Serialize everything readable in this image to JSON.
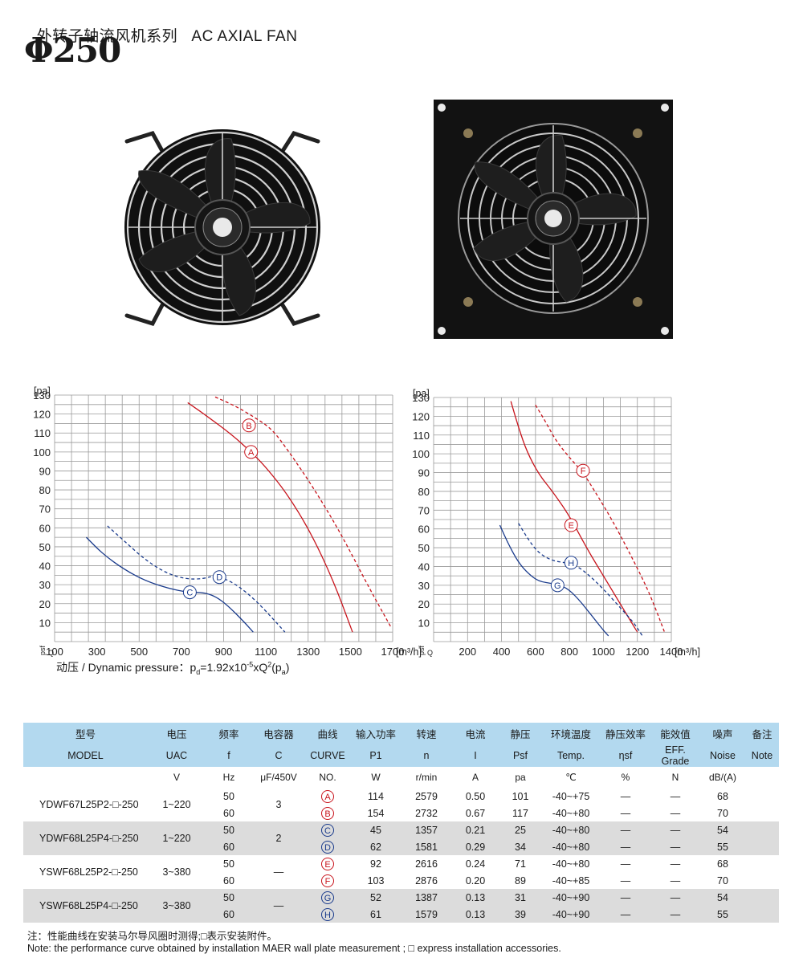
{
  "header": {
    "title_cn": "外转子轴流风机系列",
    "title_en": "AC AXIAL FAN",
    "size": "Φ250"
  },
  "chart_data": [
    {
      "type": "line",
      "xlabel": "[m³/h]",
      "ylabel": "[pa]",
      "y_axis_label": "psf",
      "x_axis_label": "Q",
      "xlim": [
        100,
        1700
      ],
      "ylim": [
        0,
        130
      ],
      "x_ticks": [
        "100",
        "300",
        "500",
        "700",
        "900",
        "1100",
        "1300",
        "1500",
        "1700"
      ],
      "y_ticks": [
        "10",
        "20",
        "30",
        "40",
        "50",
        "60",
        "70",
        "80",
        "90",
        "100",
        "110",
        "120",
        "130"
      ],
      "series": [
        {
          "name": "A",
          "color": "#c8141c",
          "style": "solid",
          "x": [
            730,
            820,
            940,
            1030,
            1100,
            1200,
            1310,
            1420,
            1510
          ],
          "y": [
            126,
            119,
            109,
            100,
            92,
            78,
            58,
            32,
            5
          ]
        },
        {
          "name": "B",
          "color": "#c8141c",
          "style": "dashed",
          "x": [
            860,
            960,
            1050,
            1130,
            1210,
            1320,
            1450,
            1590,
            1690
          ],
          "y": [
            129,
            124,
            118,
            112,
            100,
            82,
            58,
            28,
            8
          ]
        },
        {
          "name": "C",
          "color": "#1a3b8c",
          "style": "solid",
          "x": [
            250,
            330,
            430,
            530,
            640,
            730,
            800,
            860,
            920,
            1000,
            1040
          ],
          "y": [
            55,
            46,
            38,
            32,
            28,
            26,
            26,
            24,
            19,
            10,
            5
          ]
        },
        {
          "name": "D",
          "color": "#1a3b8c",
          "style": "dashed",
          "x": [
            350,
            430,
            530,
            630,
            720,
            800,
            860,
            950,
            1050,
            1150,
            1190
          ],
          "y": [
            61,
            53,
            43,
            36,
            33,
            33,
            35,
            31,
            22,
            10,
            5
          ]
        }
      ],
      "labels": [
        {
          "text": "A",
          "x": 1030,
          "y": 100
        },
        {
          "text": "B",
          "x": 1020,
          "y": 114
        },
        {
          "text": "C",
          "x": 740,
          "y": 26
        },
        {
          "text": "D",
          "x": 880,
          "y": 34
        }
      ]
    },
    {
      "type": "line",
      "xlabel": "[m³/h]",
      "ylabel": "[pa]",
      "y_axis_label": "psf",
      "x_axis_label": "Q",
      "xlim": [
        0,
        1400
      ],
      "ylim": [
        0,
        130
      ],
      "x_ticks": [
        "200",
        "400",
        "600",
        "800",
        "1000",
        "1200",
        "1400"
      ],
      "y_ticks": [
        "10",
        "20",
        "30",
        "40",
        "50",
        "60",
        "70",
        "80",
        "90",
        "100",
        "110",
        "120",
        "130"
      ],
      "series": [
        {
          "name": "E",
          "color": "#c8141c",
          "style": "solid",
          "x": [
            455,
            500,
            550,
            620,
            700,
            800,
            900,
            1000,
            1100,
            1200
          ],
          "y": [
            128,
            114,
            101,
            89,
            80,
            67,
            50,
            35,
            20,
            5
          ]
        },
        {
          "name": "F",
          "color": "#c8141c",
          "style": "dashed",
          "x": [
            600,
            660,
            720,
            800,
            880,
            950,
            1050,
            1150,
            1250,
            1310,
            1360
          ],
          "y": [
            126,
            117,
            107,
            98,
            90,
            80,
            65,
            48,
            30,
            17,
            5
          ]
        },
        {
          "name": "G",
          "color": "#1a3b8c",
          "style": "solid",
          "x": [
            390,
            440,
            500,
            560,
            620,
            700,
            780,
            850,
            930,
            1000,
            1030
          ],
          "y": [
            62,
            52,
            42,
            36,
            32,
            31,
            29,
            23,
            14,
            6,
            3
          ]
        },
        {
          "name": "H",
          "color": "#1a3b8c",
          "style": "dashed",
          "x": [
            500,
            560,
            620,
            700,
            780,
            850,
            920,
            1000,
            1100,
            1180,
            1230
          ],
          "y": [
            63,
            54,
            47,
            43,
            42,
            40,
            35,
            28,
            18,
            10,
            3
          ]
        }
      ],
      "labels": [
        {
          "text": "E",
          "x": 810,
          "y": 62
        },
        {
          "text": "F",
          "x": 880,
          "y": 91
        },
        {
          "text": "G",
          "x": 730,
          "y": 30
        },
        {
          "text": "H",
          "x": 810,
          "y": 42
        }
      ]
    }
  ],
  "dynamic_pressure": {
    "label": "动压 / Dynamic pressure：",
    "formula_p": "p",
    "formula_sub_d": "d",
    "formula_eq": "=1.92x10",
    "formula_sup": "-5",
    "formula_rest": "xQ",
    "formula_sup2": "2",
    "formula_paren": "(p",
    "formula_sub_a": "a",
    "formula_close": ")"
  },
  "table": {
    "header_cn": [
      "型号",
      "电压",
      "频率",
      "电容器",
      "曲线",
      "输入功率",
      "转速",
      "电流",
      "静压",
      "环境温度",
      "静压效率",
      "能效值",
      "噪声",
      "备注"
    ],
    "header_en": [
      "MODEL",
      "UAC",
      "f",
      "C",
      "CURVE",
      "P1",
      "n",
      "I",
      "Psf",
      "Temp.",
      "ηsf",
      "EFF. Grade",
      "Noise",
      "Note"
    ],
    "units": [
      "",
      "V",
      "Hz",
      "μF/450V",
      "NO.",
      "W",
      "r/min",
      "A",
      "pa",
      "℃",
      "%",
      "N",
      "dB/(A)",
      ""
    ],
    "groups": [
      {
        "model": "YDWF67L25P2-□-250",
        "voltage": "1~220",
        "capacitor": "3",
        "rows": [
          {
            "f": "50",
            "curve": "A",
            "p1": "114",
            "n": "2579",
            "i": "0.50",
            "psf": "101",
            "temp": "-40~+75",
            "eff": "—",
            "grade": "—",
            "noise": "68"
          },
          {
            "f": "60",
            "curve": "B",
            "p1": "154",
            "n": "2732",
            "i": "0.67",
            "psf": "117",
            "temp": "-40~+80",
            "eff": "—",
            "grade": "—",
            "noise": "70"
          }
        ]
      },
      {
        "model": "YDWF68L25P4-□-250",
        "voltage": "1~220",
        "capacitor": "2",
        "rows": [
          {
            "f": "50",
            "curve": "C",
            "p1": "45",
            "n": "1357",
            "i": "0.21",
            "psf": "25",
            "temp": "-40~+80",
            "eff": "—",
            "grade": "—",
            "noise": "54"
          },
          {
            "f": "60",
            "curve": "D",
            "p1": "62",
            "n": "1581",
            "i": "0.29",
            "psf": "34",
            "temp": "-40~+80",
            "eff": "—",
            "grade": "—",
            "noise": "55"
          }
        ]
      },
      {
        "model": "YSWF68L25P2-□-250",
        "voltage": "3~380",
        "capacitor": "—",
        "rows": [
          {
            "f": "50",
            "curve": "E",
            "p1": "92",
            "n": "2616",
            "i": "0.24",
            "psf": "71",
            "temp": "-40~+80",
            "eff": "—",
            "grade": "—",
            "noise": "68"
          },
          {
            "f": "60",
            "curve": "F",
            "p1": "103",
            "n": "2876",
            "i": "0.20",
            "psf": "89",
            "temp": "-40~+85",
            "eff": "—",
            "grade": "—",
            "noise": "70"
          }
        ]
      },
      {
        "model": "YSWF68L25P4-□-250",
        "voltage": "3~380",
        "capacitor": "—",
        "rows": [
          {
            "f": "50",
            "curve": "G",
            "p1": "52",
            "n": "1387",
            "i": "0.13",
            "psf": "31",
            "temp": "-40~+90",
            "eff": "—",
            "grade": "—",
            "noise": "54"
          },
          {
            "f": "60",
            "curve": "H",
            "p1": "61",
            "n": "1579",
            "i": "0.13",
            "psf": "39",
            "temp": "-40~+90",
            "eff": "—",
            "grade": "—",
            "noise": "55"
          }
        ]
      }
    ]
  },
  "notes": {
    "cn": "注：性能曲线在安装马尔导风圈时测得;□表示安装附件。",
    "en": "Note: the performance curve obtained by installation MAER wall plate measurement ; □ express installation accessories."
  },
  "colors": {
    "red_curve": "#c8141c",
    "blue_curve": "#1a3b8c",
    "table_header": "#b3d9ef",
    "table_alt": "#dcdcdc"
  }
}
